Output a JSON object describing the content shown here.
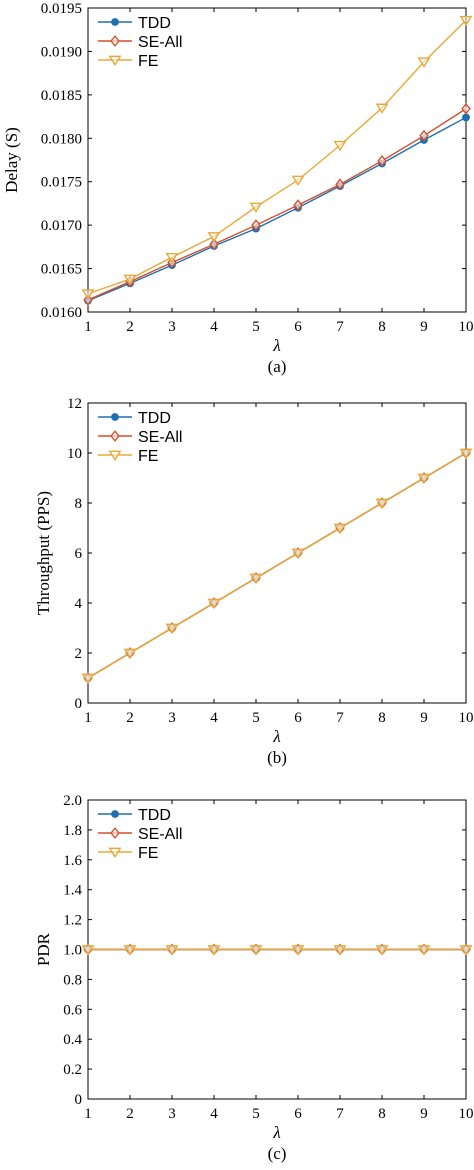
{
  "chart_data": [
    {
      "type": "line",
      "caption": "(a)",
      "xlabel": "λ",
      "ylabel": "Delay (S)",
      "x": [
        1,
        2,
        3,
        4,
        5,
        6,
        7,
        8,
        9,
        10
      ],
      "xlim": [
        1,
        10
      ],
      "ylim": [
        0.016,
        0.0195
      ],
      "xticks": [
        "1",
        "2",
        "3",
        "4",
        "5",
        "6",
        "7",
        "8",
        "9",
        "10"
      ],
      "yticks": [
        "0.0160",
        "0.0165",
        "0.0170",
        "0.0175",
        "0.0180",
        "0.0185",
        "0.0190",
        "0.0195"
      ],
      "ytick_values": [
        0.016,
        0.0165,
        0.017,
        0.0175,
        0.018,
        0.0185,
        0.019,
        0.0195
      ],
      "grid": false,
      "legend_position": "top-left",
      "series": [
        {
          "name": "TDD",
          "color": "#1f6fb2",
          "marker": "filled-circle",
          "values": [
            0.01613,
            0.01633,
            0.01654,
            0.01676,
            0.01696,
            0.0172,
            0.01745,
            0.01771,
            0.01798,
            0.01824
          ]
        },
        {
          "name": "SE-All",
          "color": "#d4502a",
          "marker": "open-diamond",
          "values": [
            0.01614,
            0.01635,
            0.01657,
            0.01678,
            0.017,
            0.01723,
            0.01747,
            0.01774,
            0.01803,
            0.01834
          ]
        },
        {
          "name": "FE",
          "color": "#e8a838",
          "marker": "open-triangle-down",
          "values": [
            0.01621,
            0.01638,
            0.01663,
            0.01687,
            0.01721,
            0.01752,
            0.01792,
            0.01835,
            0.01888,
            0.01936
          ]
        }
      ]
    },
    {
      "type": "line",
      "caption": "(b)",
      "xlabel": "λ",
      "ylabel": "Throughput (PPS)",
      "x": [
        1,
        2,
        3,
        4,
        5,
        6,
        7,
        8,
        9,
        10
      ],
      "xlim": [
        1,
        10
      ],
      "ylim": [
        0,
        12
      ],
      "xticks": [
        "1",
        "2",
        "3",
        "4",
        "5",
        "6",
        "7",
        "8",
        "9",
        "10"
      ],
      "yticks": [
        "0",
        "2",
        "4",
        "6",
        "8",
        "10",
        "12"
      ],
      "ytick_values": [
        0,
        2,
        4,
        6,
        8,
        10,
        12
      ],
      "grid": false,
      "legend_position": "top-left",
      "series": [
        {
          "name": "TDD",
          "color": "#1f6fb2",
          "marker": "filled-circle",
          "values": [
            1,
            2,
            3,
            4,
            5,
            6,
            7,
            8,
            9,
            10
          ]
        },
        {
          "name": "SE-All",
          "color": "#d4502a",
          "marker": "open-diamond",
          "values": [
            1,
            2,
            3,
            4,
            5,
            6,
            7,
            8,
            9,
            10
          ]
        },
        {
          "name": "FE",
          "color": "#e8a838",
          "marker": "open-triangle-down",
          "values": [
            1,
            2,
            3,
            4,
            5,
            6,
            7,
            8,
            9,
            10
          ]
        }
      ]
    },
    {
      "type": "line",
      "caption": "(c)",
      "xlabel": "λ",
      "ylabel": "PDR",
      "x": [
        1,
        2,
        3,
        4,
        5,
        6,
        7,
        8,
        9,
        10
      ],
      "xlim": [
        1,
        10
      ],
      "ylim": [
        0,
        2
      ],
      "xticks": [
        "1",
        "2",
        "3",
        "4",
        "5",
        "6",
        "7",
        "8",
        "9",
        "10"
      ],
      "yticks": [
        "0",
        "0.2",
        "0.4",
        "0.6",
        "0.8",
        "1.0",
        "1.2",
        "1.4",
        "1.6",
        "1.8",
        "2.0"
      ],
      "ytick_values": [
        0,
        0.2,
        0.4,
        0.6,
        0.8,
        1.0,
        1.2,
        1.4,
        1.6,
        1.8,
        2.0
      ],
      "grid": false,
      "legend_position": "top-left",
      "series": [
        {
          "name": "TDD",
          "color": "#1f6fb2",
          "marker": "filled-circle",
          "values": [
            1,
            1,
            1,
            1,
            1,
            1,
            1,
            1,
            1,
            1
          ]
        },
        {
          "name": "SE-All",
          "color": "#d4502a",
          "marker": "open-diamond",
          "values": [
            1,
            1,
            1,
            1,
            1,
            1,
            1,
            1,
            1,
            1
          ]
        },
        {
          "name": "FE",
          "color": "#e8a838",
          "marker": "open-triangle-down",
          "values": [
            1,
            1,
            1,
            1,
            1,
            1,
            1,
            1,
            1,
            1
          ]
        }
      ]
    }
  ]
}
